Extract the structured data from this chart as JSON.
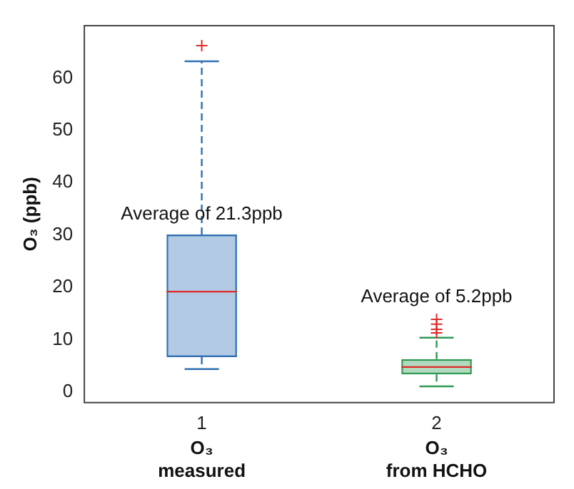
{
  "chart_data": {
    "type": "box",
    "ylabel": "O₃ (ppb)",
    "categories": [
      "1",
      "2"
    ],
    "boxes": [
      {
        "low": 4.4,
        "q1": 6.7,
        "median": 19.2,
        "q3": 30.1,
        "high": 63.2,
        "outliers": [
          66.2
        ]
      },
      {
        "low": 1.1,
        "q1": 3.4,
        "median": 4.8,
        "q3": 6.3,
        "high": 10.4,
        "outliers": [
          11.3,
          12,
          13,
          13.9
        ]
      }
    ],
    "colors": [
      "#2f6fb3",
      "#2e9a52"
    ],
    "ylim": [
      -2,
      70
    ],
    "yticks": [
      0,
      10,
      20,
      30,
      40,
      50,
      60
    ],
    "grid": false,
    "legend": false,
    "marker": "cross",
    "line_style": "dashed",
    "annotations": [
      "Average of 21.3ppb",
      "Average of 5.2ppb",
      "O₃\nmeasured",
      "O₃\nfrom HCHO"
    ]
  }
}
